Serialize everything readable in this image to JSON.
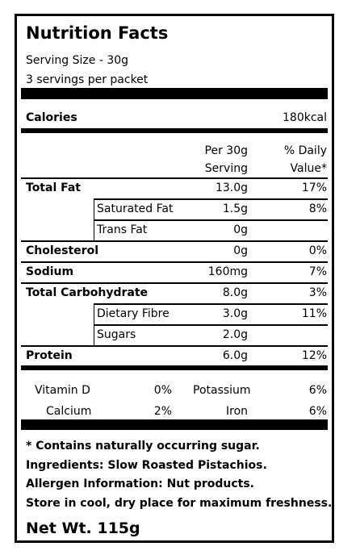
{
  "title": "Nutrition Facts",
  "serving_size": "Serving Size - 30g",
  "servings_per_packet": "3 servings per packet",
  "calories": {
    "label": "Calories",
    "value": "180kcal"
  },
  "columns": {
    "per_line1": "Per 30g",
    "per_line2": "Serving",
    "dv_line1": "% Daily",
    "dv_line2": "Value*"
  },
  "nutrients": [
    {
      "name": "Total Fat",
      "amount": "13.0g",
      "dv": "17%"
    },
    {
      "name": "Saturated Fat",
      "amount": "1.5g",
      "dv": "8%"
    },
    {
      "name": "Trans Fat",
      "amount": "0g",
      "dv": ""
    },
    {
      "name": "Cholesterol",
      "amount": "0g",
      "dv": "0%"
    },
    {
      "name": "Sodium",
      "amount": "160mg",
      "dv": "7%"
    },
    {
      "name": "Total Carbohydrate",
      "amount": "8.0g",
      "dv": "3%"
    },
    {
      "name": "Dietary Fibre",
      "amount": "3.0g",
      "dv": "11%"
    },
    {
      "name": "Sugars",
      "amount": "2.0g",
      "dv": ""
    },
    {
      "name": "Protein",
      "amount": "6.0g",
      "dv": "12%"
    }
  ],
  "vitamins": [
    {
      "name": "Vitamin D",
      "dv": "0%"
    },
    {
      "name": "Potassium",
      "dv": "6%"
    },
    {
      "name": "Calcium",
      "dv": "2%"
    },
    {
      "name": "Iron",
      "dv": "6%"
    }
  ],
  "notes": {
    "sugar": "* Contains naturally occurring sugar.",
    "ingredients": "Ingredients: Slow Roasted Pistachios.",
    "allergen": "Allergen Information: Nut products.",
    "storage": "Store in cool, dry place for maximum freshness."
  },
  "net_weight": "Net Wt. 115g"
}
